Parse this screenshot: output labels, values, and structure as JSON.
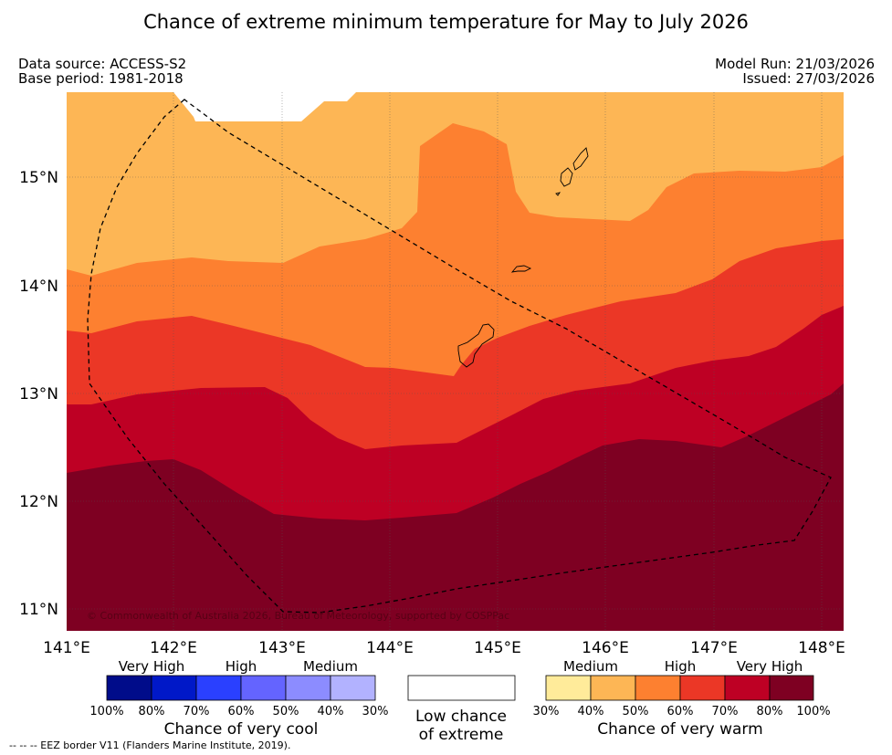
{
  "header": {
    "title": "Chance of extreme minimum temperature for May to July 2026",
    "data_source": "Data source: ACCESS-S2",
    "base_period": "Base period: 1981-2018",
    "model_run": "Model Run: 21/03/2026",
    "issued": "Issued: 27/03/2026"
  },
  "map": {
    "lat_labels": [
      "15°N",
      "14°N",
      "13°N",
      "12°N",
      "11°N"
    ],
    "lon_labels": [
      "141°E",
      "142°E",
      "143°E",
      "144°E",
      "145°E",
      "146°E",
      "147°E",
      "148°E"
    ],
    "copyright": "© Commonwealth of Australia 2026, Bureau of Meteorology, supported by COSPPac"
  },
  "legend": {
    "cool": {
      "categories": [
        "Very High",
        "High",
        "Medium"
      ],
      "ticks": [
        "100%",
        "80%",
        "70%",
        "60%",
        "50%",
        "40%",
        "30%"
      ],
      "colors": [
        "#000c8a",
        "#0018c8",
        "#2a40ff",
        "#6464ff",
        "#8c8cff",
        "#b2b2ff"
      ],
      "title": "Chance of very cool"
    },
    "neutral": {
      "line1": "Low chance",
      "line2": "of extreme"
    },
    "warm": {
      "categories": [
        "Medium",
        "High",
        "Very High"
      ],
      "ticks": [
        "30%",
        "40%",
        "50%",
        "60%",
        "70%",
        "80%",
        "100%"
      ],
      "colors": [
        "#ffeb9a",
        "#fdb655",
        "#fd8030",
        "#eb3726",
        "#be0024",
        "#7e0022"
      ],
      "title": "Chance of very warm"
    }
  },
  "footnote": "--  --  -- EEZ border V11 (Flanders Marine Institute, 2019)."
}
